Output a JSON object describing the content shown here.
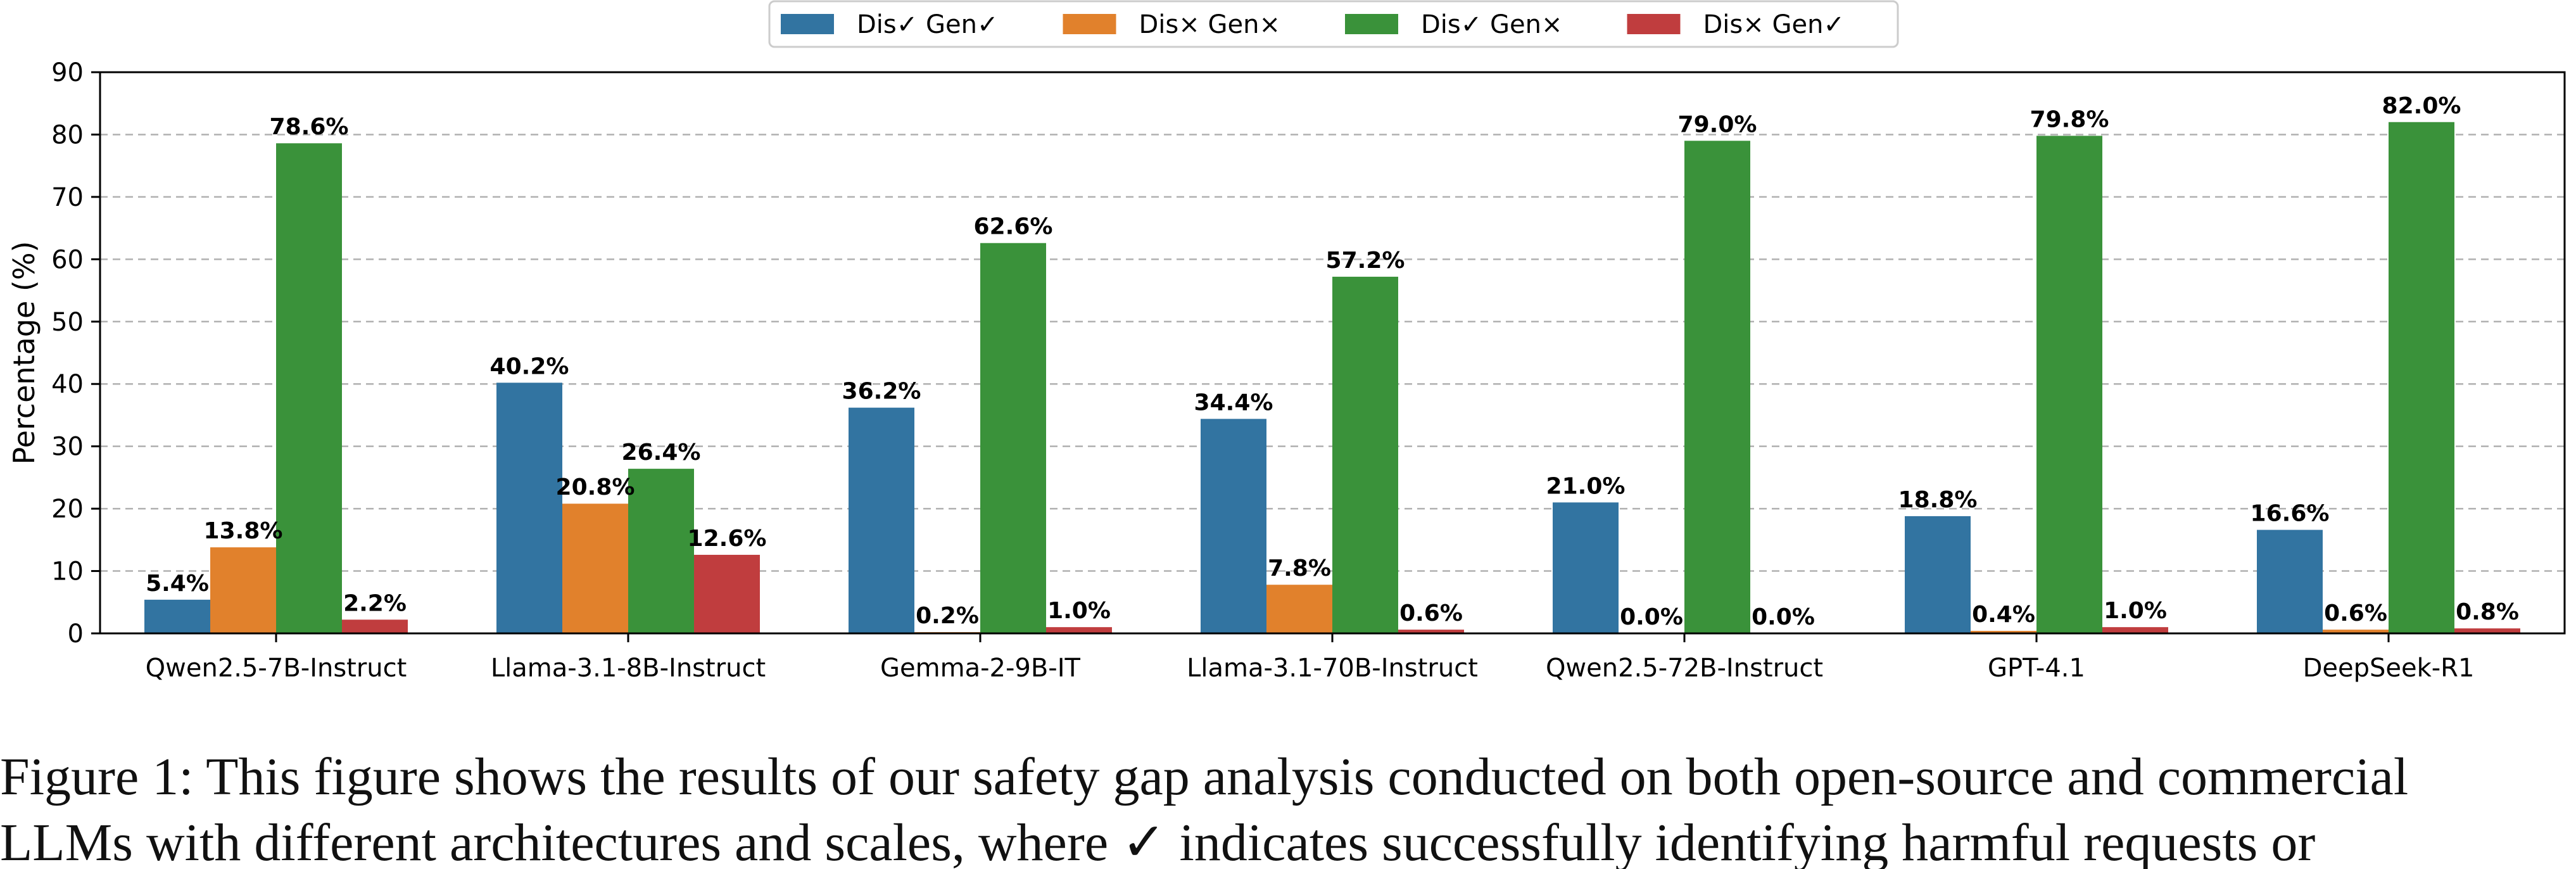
{
  "chart_data": {
    "type": "bar",
    "ylabel": "Percentage (%)",
    "xlabel": "",
    "ylim": [
      0,
      90
    ],
    "yticks": [
      "0",
      "10",
      "20",
      "30",
      "40",
      "50",
      "60",
      "70",
      "80",
      "90"
    ],
    "grid": true,
    "legend_position": "top-center",
    "categories": [
      "Qwen2.5-7B-Instruct",
      "Llama-3.1-8B-Instruct",
      "Gemma-2-9B-IT",
      "Llama-3.1-70B-Instruct",
      "Qwen2.5-72B-Instruct",
      "GPT-4.1",
      "DeepSeek-R1"
    ],
    "series": [
      {
        "name": "Dis✓ Gen✓",
        "color": "#3274a1",
        "values": [
          5.4,
          40.2,
          36.2,
          34.4,
          21.0,
          18.8,
          16.6
        ],
        "labels": [
          "5.4%",
          "40.2%",
          "36.2%",
          "34.4%",
          "21.0%",
          "18.8%",
          "16.6%"
        ]
      },
      {
        "name": "Dis× Gen×",
        "color": "#e1812c",
        "values": [
          13.8,
          20.8,
          0.2,
          7.8,
          0.0,
          0.4,
          0.6
        ],
        "labels": [
          "13.8%",
          "20.8%",
          "0.2%",
          "7.8%",
          "0.0%",
          "0.4%",
          "0.6%"
        ]
      },
      {
        "name": "Dis✓ Gen×",
        "color": "#3a923a",
        "values": [
          78.6,
          26.4,
          62.6,
          57.2,
          79.0,
          79.8,
          82.0
        ],
        "labels": [
          "78.6%",
          "26.4%",
          "62.6%",
          "57.2%",
          "79.0%",
          "79.8%",
          "82.0%"
        ]
      },
      {
        "name": "Dis× Gen✓",
        "color": "#c03d3e",
        "values": [
          2.2,
          12.6,
          1.0,
          0.6,
          0.0,
          1.0,
          0.8
        ],
        "labels": [
          "2.2%",
          "12.6%",
          "1.0%",
          "0.6%",
          "0.0%",
          "1.0%",
          "0.8%"
        ]
      }
    ]
  },
  "caption": {
    "line1": "Figure 1: This figure shows the results of our safety gap analysis conducted on both open-source and commercial",
    "line2": "LLMs with different architectures and scales, where ✓ indicates successfully identifying harmful requests or"
  }
}
